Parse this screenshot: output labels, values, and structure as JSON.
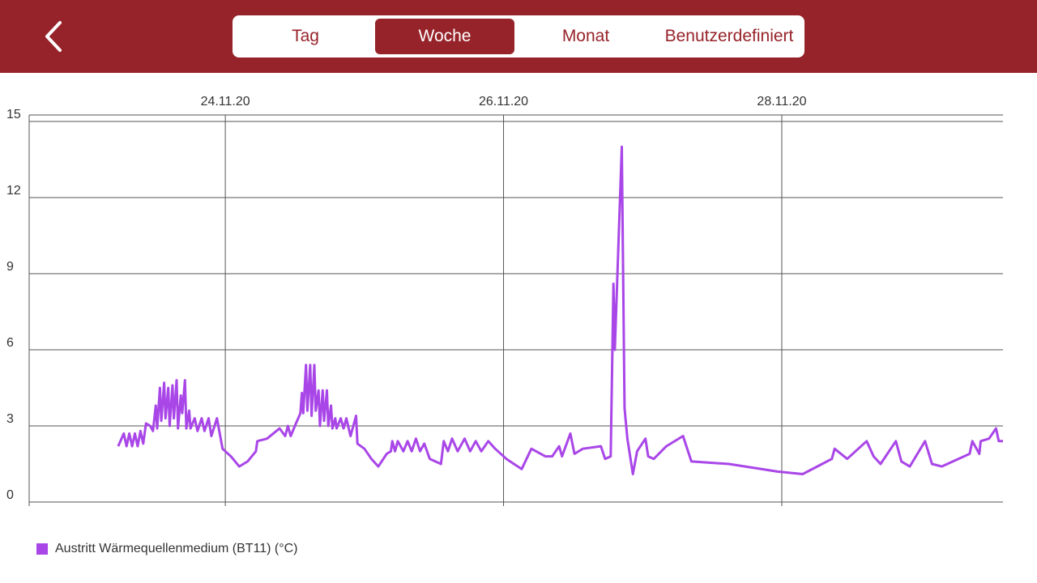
{
  "header": {
    "tabs": [
      "Tag",
      "Woche",
      "Monat",
      "Benutzerdefiniert"
    ],
    "selected_tab": 1
  },
  "chart_data": {
    "type": "line",
    "legend": "bottom-left",
    "grid": true,
    "xlim": [
      22.59,
      29.59
    ],
    "xticks": [
      {
        "value": 24,
        "label": "24.11.20"
      },
      {
        "value": 26,
        "label": "26.11.20"
      },
      {
        "value": 28,
        "label": "28.11.20"
      }
    ],
    "ylim": [
      0,
      15
    ],
    "yticks": [
      0,
      3,
      6,
      9,
      12,
      15
    ],
    "x": [
      23.23,
      23.27,
      23.29,
      23.31,
      23.33,
      23.35,
      23.37,
      23.39,
      23.41,
      23.43,
      23.46,
      23.48,
      23.5,
      23.51,
      23.53,
      23.54,
      23.56,
      23.57,
      23.59,
      23.6,
      23.62,
      23.63,
      23.65,
      23.66,
      23.68,
      23.69,
      23.71,
      23.72,
      23.74,
      23.75,
      23.78,
      23.8,
      23.83,
      23.85,
      23.88,
      23.9,
      23.94,
      23.98,
      24.04,
      24.1,
      24.16,
      24.22,
      24.23,
      24.3,
      24.39,
      24.43,
      24.45,
      24.47,
      24.5,
      24.54,
      24.55,
      24.56,
      24.58,
      24.59,
      24.61,
      24.62,
      24.64,
      24.65,
      24.67,
      24.68,
      24.7,
      24.71,
      24.73,
      24.74,
      24.76,
      24.77,
      24.79,
      24.8,
      24.83,
      24.85,
      24.87,
      24.9,
      24.94,
      24.95,
      25.0,
      25.05,
      25.1,
      25.16,
      25.19,
      25.2,
      25.22,
      25.24,
      25.28,
      25.31,
      25.34,
      25.37,
      25.4,
      25.43,
      25.47,
      25.55,
      25.57,
      25.6,
      25.63,
      25.67,
      25.72,
      25.76,
      25.8,
      25.84,
      25.89,
      25.94,
      26.02,
      26.13,
      26.2,
      26.3,
      26.35,
      26.4,
      26.42,
      26.48,
      26.51,
      26.57,
      26.7,
      26.73,
      26.77,
      26.79,
      26.8,
      26.85,
      26.87,
      26.89,
      26.93,
      26.96,
      27.02,
      27.04,
      27.08,
      27.17,
      27.29,
      27.35,
      27.62,
      27.97,
      28.15,
      28.29,
      28.36,
      28.38,
      28.47,
      28.61,
      28.66,
      28.71,
      28.82,
      28.86,
      28.92,
      29.03,
      29.08,
      29.15,
      29.35,
      29.37,
      29.42,
      29.43,
      29.49,
      29.54,
      29.56,
      29.59
    ],
    "series": [
      {
        "name": "Austritt Wärmequellenmedium (BT11) (°C)",
        "color": "#a946e8",
        "values": [
          2.2,
          2.7,
          2.2,
          2.7,
          2.2,
          2.7,
          2.2,
          2.8,
          2.3,
          3.1,
          3.0,
          2.8,
          3.8,
          2.9,
          4.5,
          3.2,
          4.7,
          3.3,
          4.5,
          3.0,
          4.6,
          3.3,
          4.8,
          2.9,
          4.2,
          3.5,
          4.8,
          2.9,
          3.6,
          2.9,
          3.3,
          2.8,
          3.3,
          2.8,
          3.3,
          2.6,
          3.3,
          2.1,
          1.8,
          1.4,
          1.6,
          2.0,
          2.4,
          2.5,
          2.9,
          2.6,
          3.0,
          2.6,
          3.0,
          3.5,
          4.3,
          3.5,
          5.4,
          3.6,
          5.4,
          3.4,
          5.4,
          3.6,
          4.4,
          3.0,
          4.4,
          3.2,
          4.4,
          3.0,
          3.8,
          2.9,
          3.3,
          2.9,
          3.3,
          2.9,
          3.3,
          2.6,
          3.4,
          2.3,
          2.1,
          1.7,
          1.4,
          1.9,
          2.0,
          2.4,
          2.0,
          2.4,
          2.0,
          2.4,
          2.0,
          2.5,
          2.0,
          2.3,
          1.7,
          1.5,
          2.4,
          2.0,
          2.5,
          2.0,
          2.5,
          2.0,
          2.4,
          2.0,
          2.4,
          2.1,
          1.7,
          1.3,
          2.1,
          1.8,
          1.8,
          2.2,
          1.8,
          2.7,
          1.9,
          2.1,
          2.2,
          1.7,
          1.8,
          8.6,
          6.0,
          14.0,
          3.7,
          2.5,
          1.1,
          2.0,
          2.5,
          1.8,
          1.7,
          2.2,
          2.6,
          1.6,
          1.5,
          1.2,
          1.1,
          1.5,
          1.7,
          2.1,
          1.7,
          2.4,
          1.8,
          1.5,
          2.4,
          1.6,
          1.4,
          2.4,
          1.5,
          1.4,
          1.9,
          2.4,
          1.9,
          2.4,
          2.5,
          2.9,
          2.4,
          2.4
        ]
      }
    ]
  }
}
